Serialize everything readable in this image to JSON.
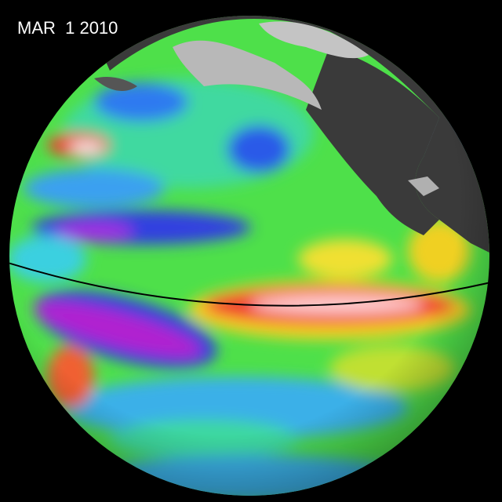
{
  "date_label": "MAR  1 2010"
}
